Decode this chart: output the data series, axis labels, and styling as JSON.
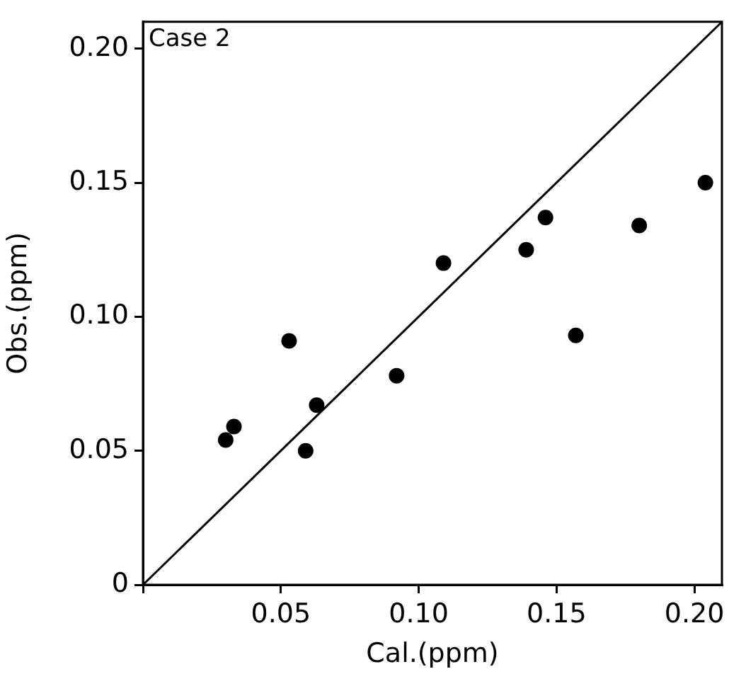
{
  "chart_data": {
    "type": "scatter",
    "xlabel": "Cal.(ppm)",
    "ylabel": "Obs.(ppm)",
    "annotations": [
      "Case 2"
    ],
    "xlim": [
      0,
      0.21
    ],
    "ylim": [
      0,
      0.21
    ],
    "xticks": [
      {
        "value": 0,
        "label": null
      },
      {
        "value": 0.05,
        "label": "0.05"
      },
      {
        "value": 0.1,
        "label": "0.10"
      },
      {
        "value": 0.15,
        "label": "0.15"
      },
      {
        "value": 0.2,
        "label": "0.20"
      }
    ],
    "yticks": [
      {
        "value": 0,
        "label": "0"
      },
      {
        "value": 0.05,
        "label": "0.05"
      },
      {
        "value": 0.1,
        "label": "0.10"
      },
      {
        "value": 0.15,
        "label": "0.15"
      },
      {
        "value": 0.2,
        "label": "0.20"
      }
    ],
    "grid": false,
    "legend": false,
    "marker": "circle",
    "series": [
      {
        "type": "scatter",
        "color": "#000000",
        "x": [
          0.03,
          0.033,
          0.053,
          0.059,
          0.063,
          0.092,
          0.109,
          0.139,
          0.146,
          0.157,
          0.18,
          0.204
        ],
        "values": [
          0.054,
          0.059,
          0.091,
          0.05,
          0.067,
          0.078,
          0.12,
          0.125,
          0.137,
          0.093,
          0.134,
          0.15
        ]
      },
      {
        "type": "line",
        "color": "#000000",
        "marker": "none",
        "x": [
          0,
          0.21
        ],
        "values": [
          0,
          0.21
        ]
      }
    ]
  }
}
